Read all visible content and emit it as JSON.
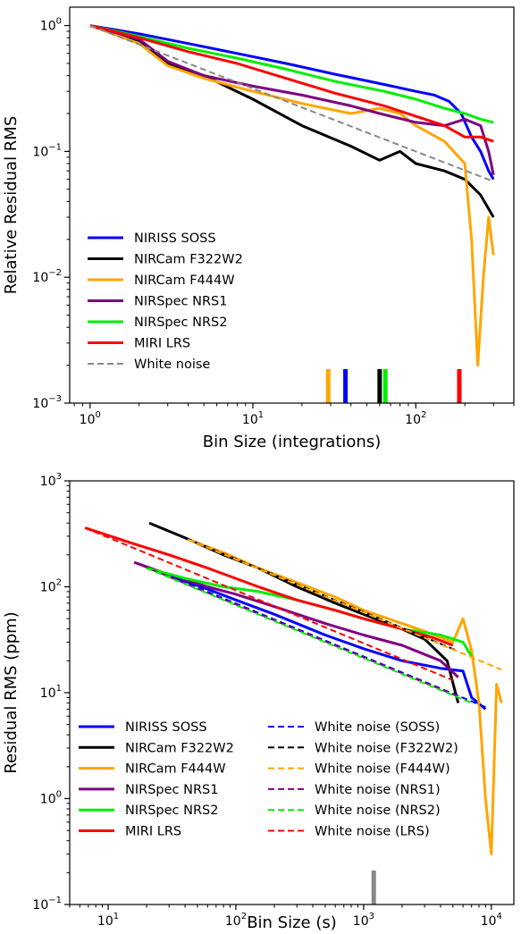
{
  "chart_data": [
    {
      "type": "line",
      "xscale": "log",
      "yscale": "log",
      "xlim": [
        0.75,
        400
      ],
      "ylim": [
        0.001,
        1.4
      ],
      "xlabel": "Bin Size (integrations)",
      "ylabel": "Relative Residual RMS",
      "xticks": [
        {
          "value": 1,
          "label": "10",
          "exp": "0"
        },
        {
          "value": 10,
          "label": "10",
          "exp": "1"
        },
        {
          "value": 100,
          "label": "10",
          "exp": "2"
        }
      ],
      "yticks": [
        {
          "value": 1,
          "label": "10",
          "exp": "0"
        },
        {
          "value": 0.1,
          "label": "10",
          "exp": "−1"
        },
        {
          "value": 0.01,
          "label": "10",
          "exp": "−2"
        },
        {
          "value": 0.001,
          "label": "10",
          "exp": "−3"
        }
      ],
      "legend_position": "lower-left",
      "series": [
        {
          "name": "NIRISS SOSS",
          "color": "#0000ff",
          "style": "solid",
          "x": [
            1,
            2,
            4,
            8,
            16,
            32,
            64,
            100,
            130,
            160,
            190,
            220,
            250,
            280,
            300
          ],
          "y": [
            1,
            0.86,
            0.72,
            0.6,
            0.5,
            0.41,
            0.34,
            0.3,
            0.28,
            0.25,
            0.2,
            0.13,
            0.1,
            0.07,
            0.06
          ]
        },
        {
          "name": "NIRCam F322W2",
          "color": "#000000",
          "style": "solid",
          "x": [
            1,
            2,
            3,
            5,
            10,
            20,
            40,
            60,
            80,
            100,
            150,
            200,
            250,
            300
          ],
          "y": [
            1,
            0.76,
            0.5,
            0.4,
            0.26,
            0.16,
            0.11,
            0.085,
            0.1,
            0.08,
            0.07,
            0.06,
            0.045,
            0.03
          ]
        },
        {
          "name": "NIRCam F444W",
          "color": "#ffa500",
          "style": "solid",
          "x": [
            1,
            2,
            3,
            5,
            10,
            20,
            40,
            60,
            80,
            100,
            150,
            200,
            220,
            240,
            260,
            280,
            300
          ],
          "y": [
            1,
            0.72,
            0.48,
            0.38,
            0.3,
            0.24,
            0.2,
            0.22,
            0.2,
            0.16,
            0.12,
            0.08,
            0.02,
            0.002,
            0.01,
            0.03,
            0.015
          ]
        },
        {
          "name": "NIRSpec NRS1",
          "color": "#800080",
          "style": "solid",
          "x": [
            1,
            2,
            3,
            5,
            10,
            20,
            40,
            60,
            100,
            150,
            200,
            250,
            280,
            300
          ],
          "y": [
            1,
            0.78,
            0.52,
            0.4,
            0.33,
            0.28,
            0.23,
            0.2,
            0.17,
            0.16,
            0.18,
            0.16,
            0.1,
            0.065
          ]
        },
        {
          "name": "NIRSpec NRS2",
          "color": "#00ee00",
          "style": "solid",
          "x": [
            1,
            2,
            4,
            8,
            16,
            32,
            64,
            100,
            150,
            200,
            250,
            300
          ],
          "y": [
            1,
            0.82,
            0.66,
            0.55,
            0.45,
            0.36,
            0.3,
            0.26,
            0.22,
            0.2,
            0.18,
            0.17
          ]
        },
        {
          "name": "MIRI LRS",
          "color": "#ff0000",
          "style": "solid",
          "x": [
            1,
            2,
            4,
            8,
            16,
            32,
            64,
            100,
            150,
            200,
            250,
            300
          ],
          "y": [
            1,
            0.8,
            0.62,
            0.5,
            0.38,
            0.29,
            0.23,
            0.19,
            0.16,
            0.13,
            0.13,
            0.12
          ]
        },
        {
          "name": "White noise",
          "color": "#888888",
          "style": "dashed",
          "x": [
            1,
            300
          ],
          "y": [
            1,
            0.0577
          ]
        }
      ],
      "markers": [
        {
          "x": 29,
          "color": "#ffa500"
        },
        {
          "x": 37,
          "color": "#0000ff"
        },
        {
          "x": 60,
          "color": "#000000"
        },
        {
          "x": 65,
          "color": "#00ee00"
        },
        {
          "x": 185,
          "color": "#ff0000"
        }
      ]
    },
    {
      "type": "line",
      "xscale": "log",
      "yscale": "log",
      "xlim": [
        5,
        15000
      ],
      "ylim": [
        0.1,
        1000
      ],
      "xlabel": "Bin Size (s)",
      "ylabel": "Residual RMS (ppm)",
      "xticks": [
        {
          "value": 10,
          "label": "10",
          "exp": "1"
        },
        {
          "value": 100,
          "label": "10",
          "exp": "2"
        },
        {
          "value": 1000,
          "label": "10",
          "exp": "3"
        },
        {
          "value": 10000,
          "label": "10",
          "exp": "4"
        }
      ],
      "yticks": [
        {
          "value": 1000,
          "label": "10",
          "exp": "3"
        },
        {
          "value": 100,
          "label": "10",
          "exp": "2"
        },
        {
          "value": 10,
          "label": "10",
          "exp": "1"
        },
        {
          "value": 1,
          "label": "10",
          "exp": "0"
        },
        {
          "value": 0.1,
          "label": "10",
          "exp": "−1"
        }
      ],
      "legend_position": "lower-left",
      "series": [
        {
          "name": "NIRISS SOSS",
          "color": "#0000ff",
          "style": "solid",
          "x": [
            31,
            60,
            100,
            200,
            500,
            1000,
            2000,
            4000,
            6000,
            7000,
            9000
          ],
          "y": [
            125,
            95,
            75,
            55,
            35,
            26,
            20,
            17,
            16,
            9,
            7
          ]
        },
        {
          "name": "NIRCam F322W2",
          "color": "#000000",
          "style": "solid",
          "x": [
            21,
            40,
            80,
            150,
            300,
            600,
            1000,
            2000,
            3000,
            4500,
            5500
          ],
          "y": [
            400,
            290,
            200,
            150,
            100,
            70,
            55,
            40,
            32,
            20,
            8
          ]
        },
        {
          "name": "NIRCam F444W",
          "color": "#ffa500",
          "style": "solid",
          "x": [
            42,
            80,
            150,
            300,
            600,
            1000,
            2000,
            3000,
            5000,
            6000,
            7000,
            8000,
            9000,
            10000,
            11000,
            12000
          ],
          "y": [
            280,
            210,
            150,
            110,
            80,
            60,
            45,
            38,
            30,
            50,
            25,
            8,
            1,
            0.3,
            12,
            8
          ]
        },
        {
          "name": "NIRSpec NRS1",
          "color": "#800080",
          "style": "solid",
          "x": [
            16,
            30,
            60,
            100,
            200,
            500,
            1000,
            2000,
            4000,
            5500
          ],
          "y": [
            170,
            130,
            100,
            85,
            65,
            45,
            35,
            28,
            20,
            14
          ]
        },
        {
          "name": "NIRSpec NRS2",
          "color": "#00ee00",
          "style": "solid",
          "x": [
            20,
            40,
            80,
            150,
            300,
            600,
            1000,
            2000,
            4000,
            6000,
            7000
          ],
          "y": [
            150,
            120,
            100,
            90,
            75,
            60,
            50,
            40,
            35,
            30,
            22
          ]
        },
        {
          "name": "MIRI LRS",
          "color": "#ff0000",
          "style": "solid",
          "x": [
            6.6,
            15,
            30,
            60,
            150,
            300,
            600,
            1000,
            2000,
            3500,
            5000
          ],
          "y": [
            360,
            260,
            200,
            150,
            100,
            75,
            60,
            50,
            40,
            33,
            28
          ]
        },
        {
          "name": "White noise (SOSS)",
          "color": "#0000ff",
          "style": "dashed",
          "x": [
            31,
            9000
          ],
          "y": [
            125,
            7.3
          ]
        },
        {
          "name": "White noise (F322W2)",
          "color": "#000000",
          "style": "dashed",
          "x": [
            21,
            5500
          ],
          "y": [
            400,
            24.7
          ]
        },
        {
          "name": "White noise (F444W)",
          "color": "#ffa500",
          "style": "dashed",
          "x": [
            42,
            12000
          ],
          "y": [
            280,
            16.5
          ]
        },
        {
          "name": "White noise (NRS1)",
          "color": "#800080",
          "style": "dashed",
          "x": [
            16,
            5500
          ],
          "y": [
            170,
            9.2
          ]
        },
        {
          "name": "White noise (NRS2)",
          "color": "#00ee00",
          "style": "dashed",
          "x": [
            20,
            7000
          ],
          "y": [
            150,
            8
          ]
        },
        {
          "name": "White noise (LRS)",
          "color": "#ff0000",
          "style": "dashed",
          "x": [
            6.6,
            5000
          ],
          "y": [
            360,
            13.1
          ]
        }
      ],
      "markers": [
        {
          "x": 1200,
          "color": "#888888"
        }
      ]
    }
  ]
}
